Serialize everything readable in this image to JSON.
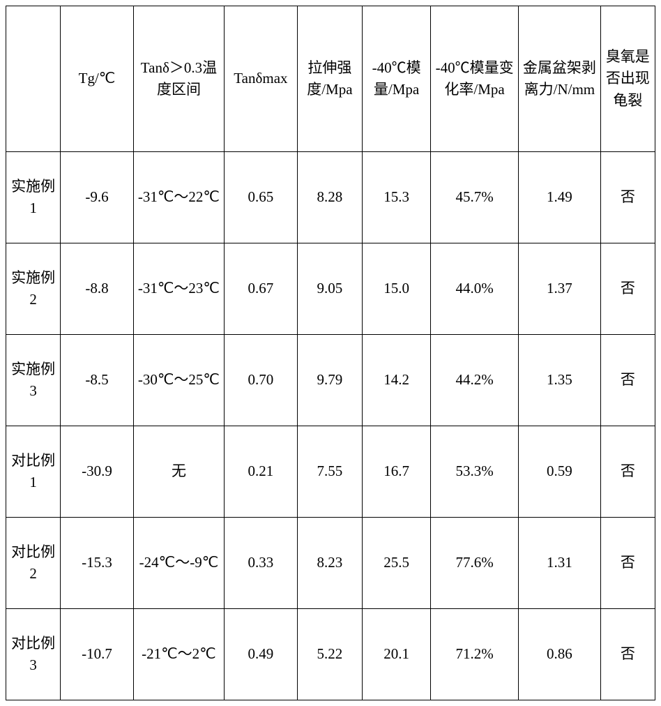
{
  "table": {
    "columns": [
      {
        "key": "label",
        "header": ""
      },
      {
        "key": "tg",
        "header": "Tg/℃"
      },
      {
        "key": "tan_range",
        "header": "Tanδ＞0.3温度区间"
      },
      {
        "key": "tan_max",
        "header": "Tanδmax"
      },
      {
        "key": "tensile",
        "header": "拉伸强度/Mpa"
      },
      {
        "key": "mod40",
        "header": "-40℃模量/Mpa"
      },
      {
        "key": "mod_change",
        "header": "-40℃模量变化率/Mpa"
      },
      {
        "key": "peel",
        "header": "金属盆架剥离力/N/mm"
      },
      {
        "key": "ozone",
        "header": "臭氧是否出现龟裂"
      }
    ],
    "rows": [
      {
        "label": "实施例1",
        "tg": "-9.6",
        "tan_range": "-31℃～22℃",
        "tan_max": "0.65",
        "tensile": "8.28",
        "mod40": "15.3",
        "mod_change": "45.7%",
        "peel": "1.49",
        "ozone": "否"
      },
      {
        "label": "实施例2",
        "tg": "-8.8",
        "tan_range": "-31℃～23℃",
        "tan_max": "0.67",
        "tensile": "9.05",
        "mod40": "15.0",
        "mod_change": "44.0%",
        "peel": "1.37",
        "ozone": "否"
      },
      {
        "label": "实施例3",
        "tg": "-8.5",
        "tan_range": "-30℃～25℃",
        "tan_max": "0.70",
        "tensile": "9.79",
        "mod40": "14.2",
        "mod_change": "44.2%",
        "peel": "1.35",
        "ozone": "否"
      },
      {
        "label": "对比例1",
        "tg": "-30.9",
        "tan_range": "无",
        "tan_max": "0.21",
        "tensile": "7.55",
        "mod40": "16.7",
        "mod_change": "53.3%",
        "peel": "0.59",
        "ozone": "否"
      },
      {
        "label": "对比例2",
        "tg": "-15.3",
        "tan_range": "-24℃～-9℃",
        "tan_max": "0.33",
        "tensile": "8.23",
        "mod40": "25.5",
        "mod_change": "77.6%",
        "peel": "1.31",
        "ozone": "否"
      },
      {
        "label": "对比例3",
        "tg": "-10.7",
        "tan_range": "-21℃～2℃",
        "tan_max": "0.49",
        "tensile": "5.22",
        "mod40": "20.1",
        "mod_change": "71.2%",
        "peel": "0.86",
        "ozone": "否"
      }
    ],
    "border_color": "#000000",
    "background_color": "#ffffff",
    "font_size": 21,
    "font_family": "SimSun"
  }
}
